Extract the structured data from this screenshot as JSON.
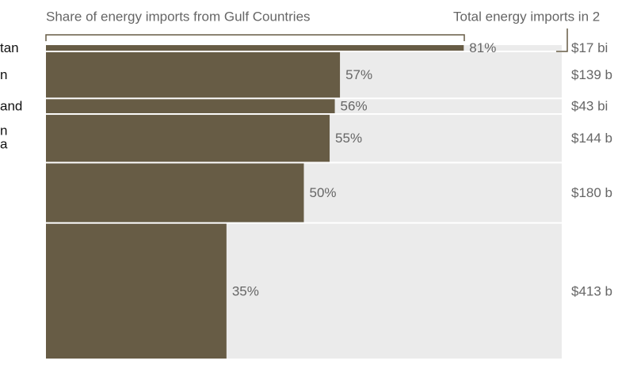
{
  "chart_data": {
    "type": "marimekko-bar",
    "title": "Share of energy imports from Gulf Countries",
    "subtitle": "Total energy imports in 2",
    "categories": [
      "tan",
      "n",
      "and",
      [
        "n",
        "a"
      ],
      "",
      ""
    ],
    "values": [
      81,
      57,
      56,
      55,
      50,
      35
    ],
    "value_labels": [
      "81%",
      "57%",
      "56%",
      "55%",
      "50%",
      "35%"
    ],
    "totals": [
      17,
      139,
      43,
      144,
      180,
      413
    ],
    "total_labels": [
      "$17 bi",
      "$139 b",
      "$43 bi",
      "$144 b",
      "$180 b",
      "$413 b"
    ],
    "xlim": [
      0,
      100
    ],
    "color": "#675c45",
    "background_color": "#ebebeb"
  }
}
